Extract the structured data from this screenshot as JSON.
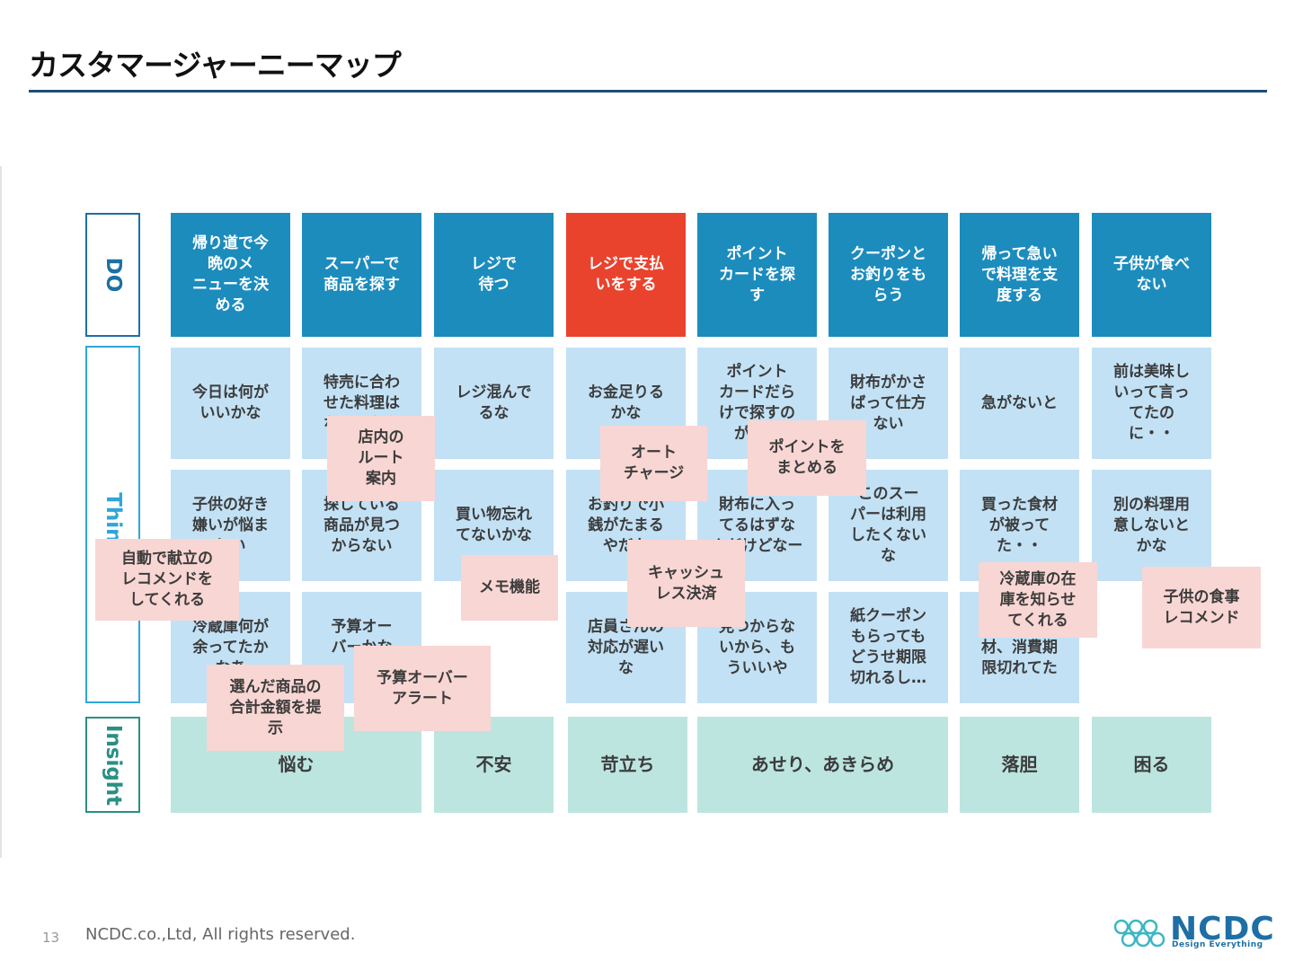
{
  "title": "カスタマージャーニーマップ",
  "row_labels": {
    "do": "DO",
    "think": "Think",
    "insight": "Insight"
  },
  "do": [
    "帰り道で今\n晩のメ\nニューを決\nめる",
    "スーパーで\n商品を探す",
    "レジで\n待つ",
    "レジで支払\nいをする",
    "ポイント\nカードを探\nす",
    "クーポンと\nお釣りをも\nらう",
    "帰って急い\nで料理を支\n度する",
    "子供が食べ\nない"
  ],
  "think_row1": [
    "今日は何が\nいいかな",
    "特売に合わ\nせた料理は\nなにかなあ",
    "レジ混んで\nるな",
    "お金足りる\nかな",
    "ポイント\nカードだら\nけで探すの\nが大変",
    "財布がかさ\nばって仕方\nない",
    "急がないと",
    "前は美味し\nいって言っ\nてたの\nに・・"
  ],
  "think_row2": [
    "子供の好き\n嫌いが悩ま\nしい",
    "探している\n商品が見つ\nからない",
    "買い物忘れ\nてないかな",
    "お釣りで小\n銭がたまる\nやだな",
    "財布に入っ\nてるはずな\nんだけどなー",
    "このスー\nパーは利用\nしたくない\nな",
    "買った食材\nが被って\nた・・",
    "別の料理用\n意しないと\nかな"
  ],
  "think_row3": [
    "冷蔵庫何が\n余ってたか\nなあ",
    "予算オー\nバーかな\nあ",
    "",
    "店員さんの\n対応が遅い\nな",
    "見つからな\nいから、も\nういいや",
    "紙クーポン\nもらっても\nどうせ期限\n切れるし…",
    "買った食\n材、消費期\n限切れてた",
    ""
  ],
  "insight": [
    "悩む",
    "不安",
    "苛立ち",
    "あせり、あきらめ",
    "落胆",
    "困る"
  ],
  "stickies": [
    "店内の\nルート\n案内",
    "オート\nチャージ",
    "ポイントを\nまとめる",
    "自動で献立の\nレコメンドを\nしてくれる",
    "メモ機能",
    "キャッシュ\nレス決済",
    "冷蔵庫の在\n庫を知らせ\nてくれる",
    "子供の食事\nレコメンド",
    "選んだ商品の\n合計金額を提\n示",
    "予算オーバー\nアラート"
  ],
  "colors": {
    "do": "#1c8cbd",
    "do_active": "#e9432e",
    "think": "#c2e1f5",
    "insight": "#bce5e0",
    "sticky": "#f8d6d3",
    "label_do": "#1d6fa5",
    "label_think": "#2fa6d9",
    "label_insight": "#2a8f84"
  },
  "footer": {
    "page": "13",
    "copyright": "NCDC.co.,Ltd, All rights reserved.",
    "logo": "NCDC",
    "logo_sub": "Design Everything"
  }
}
